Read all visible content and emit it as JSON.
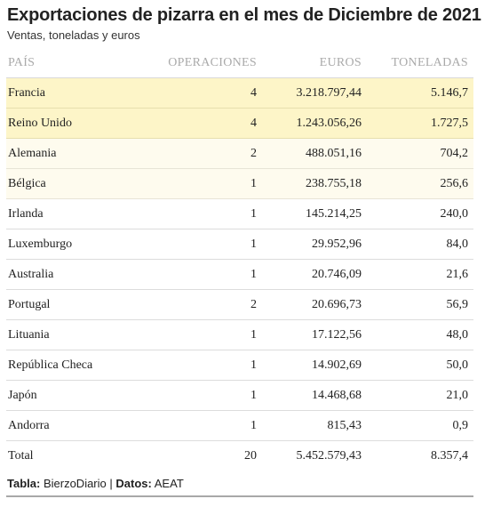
{
  "header": {
    "title": "Exportaciones de pizarra en el mes de Diciembre de 2021",
    "subtitle": "Ventas, toneladas y euros"
  },
  "table": {
    "columns": [
      "PAÍS",
      "OPERACIONES",
      "EUROS",
      "TONELADAS"
    ],
    "rows": [
      {
        "pais": "Francia",
        "operaciones": "4",
        "euros": "3.218.797,44",
        "toneladas": "5.146,7"
      },
      {
        "pais": "Reino Unido",
        "operaciones": "4",
        "euros": "1.243.056,26",
        "toneladas": "1.727,5"
      },
      {
        "pais": "Alemania",
        "operaciones": "2",
        "euros": "488.051,16",
        "toneladas": "704,2"
      },
      {
        "pais": "Bélgica",
        "operaciones": "1",
        "euros": "238.755,18",
        "toneladas": "256,6"
      },
      {
        "pais": "Irlanda",
        "operaciones": "1",
        "euros": "145.214,25",
        "toneladas": "240,0"
      },
      {
        "pais": "Luxemburgo",
        "operaciones": "1",
        "euros": "29.952,96",
        "toneladas": "84,0"
      },
      {
        "pais": "Australia",
        "operaciones": "1",
        "euros": "20.746,09",
        "toneladas": "21,6"
      },
      {
        "pais": "Portugal",
        "operaciones": "2",
        "euros": "20.696,73",
        "toneladas": "56,9"
      },
      {
        "pais": "Lituania",
        "operaciones": "1",
        "euros": "17.122,56",
        "toneladas": "48,0"
      },
      {
        "pais": "República Checa",
        "operaciones": "1",
        "euros": "14.902,69",
        "toneladas": "50,0"
      },
      {
        "pais": "Japón",
        "operaciones": "1",
        "euros": "14.468,68",
        "toneladas": "21,0"
      },
      {
        "pais": "Andorra",
        "operaciones": "1",
        "euros": "815,43",
        "toneladas": "0,9"
      }
    ],
    "total": {
      "pais": "Total",
      "operaciones": "20",
      "euros": "5.452.579,43",
      "toneladas": "8.357,4"
    }
  },
  "footer": {
    "tabla_label": "Tabla:",
    "tabla_value": "BierzoDiario",
    "separator": "|",
    "datos_label": "Datos:",
    "datos_value": "AEAT"
  },
  "colors": {
    "highlight_strong": "#fdf5c8",
    "highlight_light": "#fefbee",
    "header_text": "#aaaaaa"
  }
}
